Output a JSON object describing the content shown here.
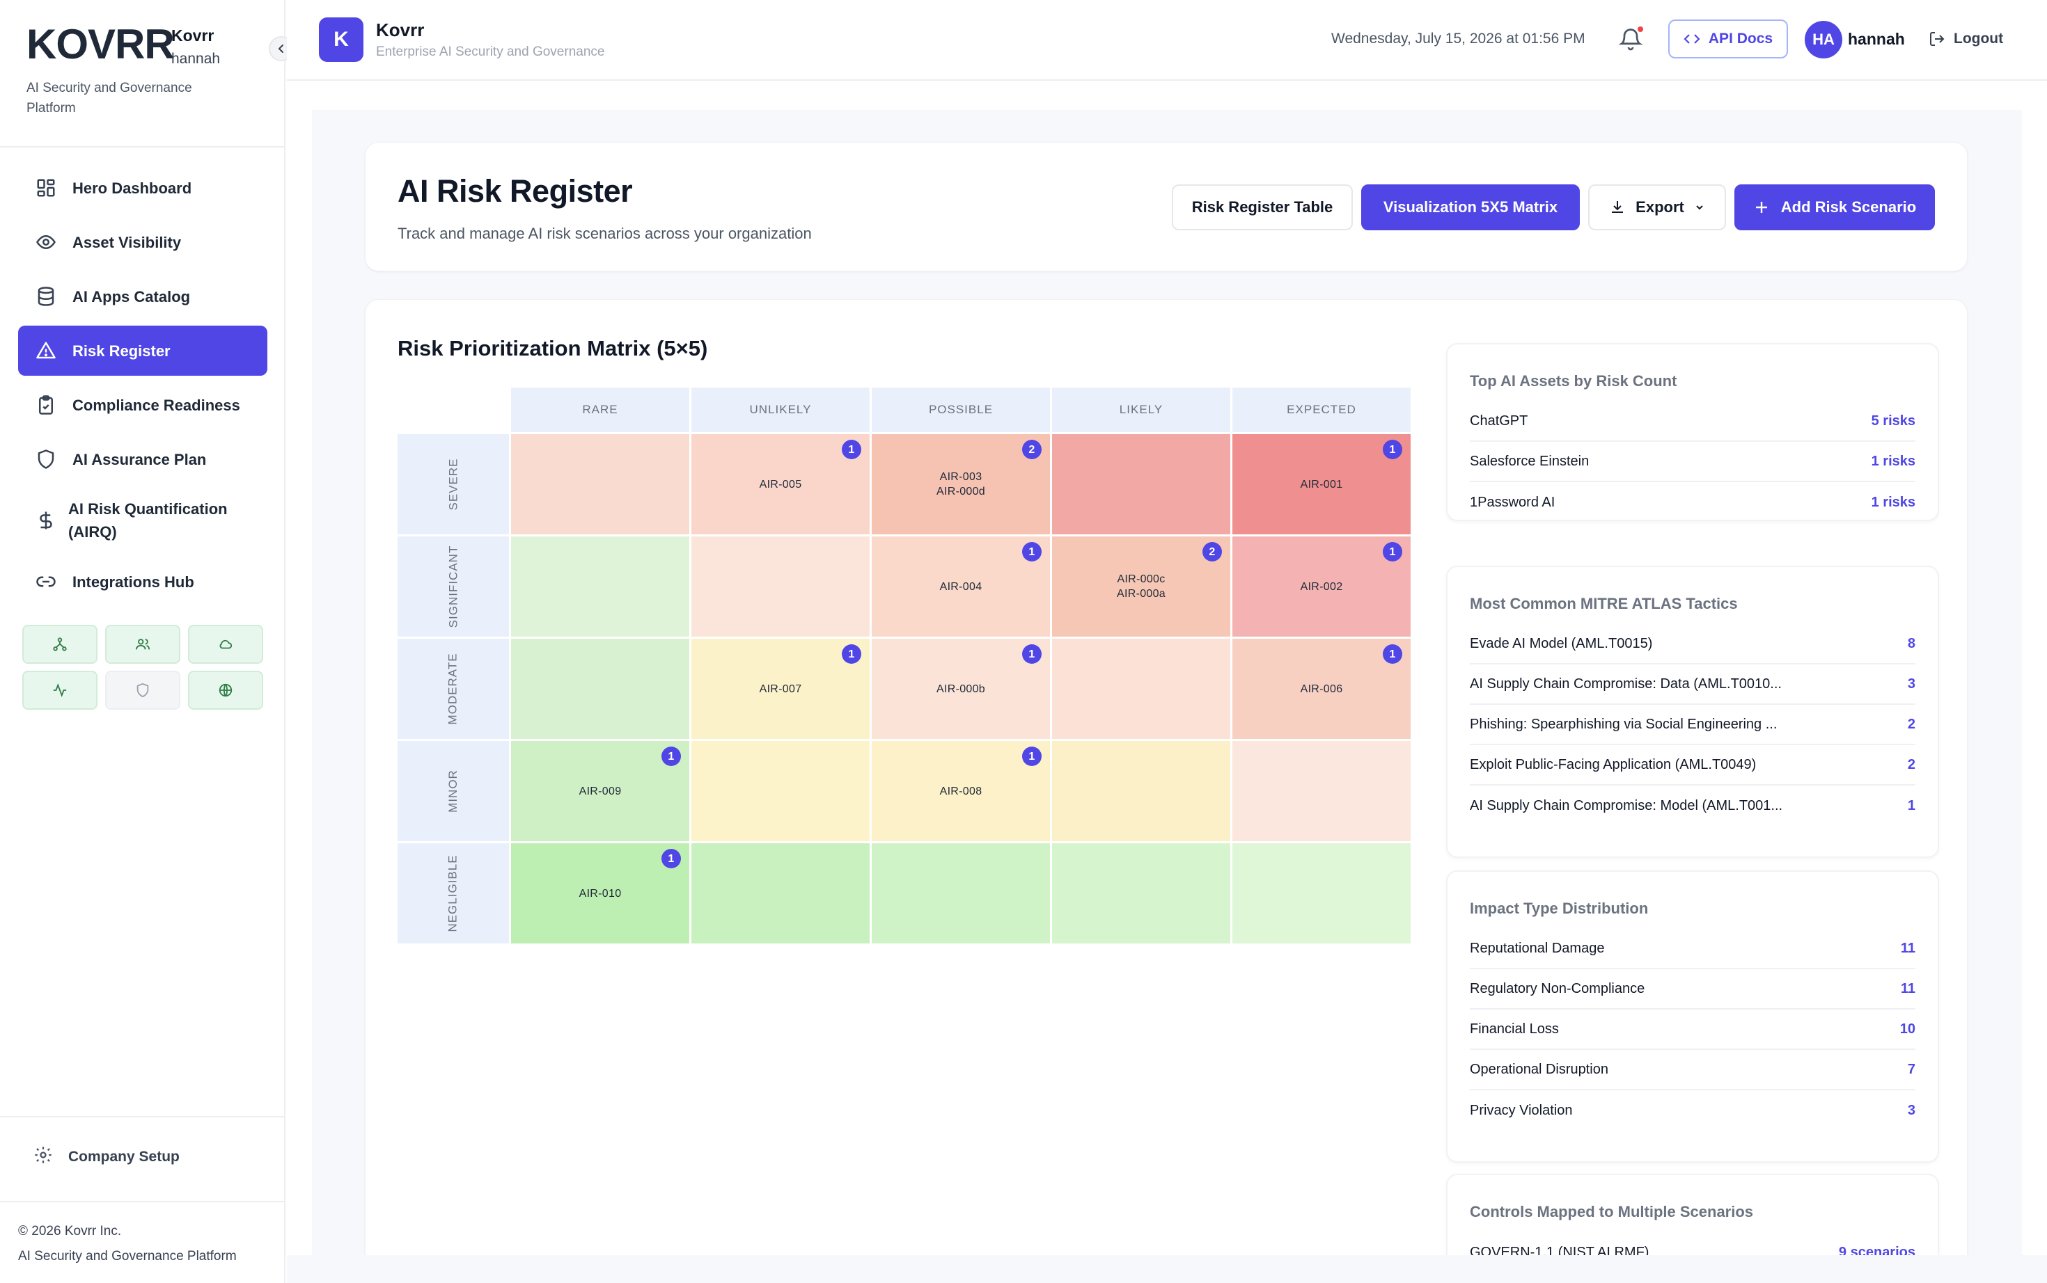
{
  "brand": {
    "name": "Kovrr",
    "user": "hannah",
    "logo_text": "KOVRR",
    "tagline": "AI Security and Governance Platform"
  },
  "sidebar": {
    "items": [
      {
        "label": "Hero Dashboard",
        "icon": "grid-icon"
      },
      {
        "label": "Asset Visibility",
        "icon": "eye-icon"
      },
      {
        "label": "AI Apps Catalog",
        "icon": "database-icon"
      },
      {
        "label": "Risk Register",
        "icon": "alert-triangle-icon",
        "active": true
      },
      {
        "label": "Compliance Readiness",
        "icon": "clipboard-check-icon"
      },
      {
        "label": "AI Assurance Plan",
        "icon": "shield-icon"
      },
      {
        "label": "AI Risk Quantification (AIRQ)",
        "icon": "dollar-icon"
      },
      {
        "label": "Integrations Hub",
        "icon": "link-icon"
      }
    ],
    "quick_icons": [
      "network-icon",
      "users-icon",
      "cloud-icon",
      "activity-icon",
      "shield-icon",
      "globe-icon"
    ],
    "company_setup": "Company Setup",
    "footer_copyright": "© 2026 Kovrr Inc.",
    "footer_tagline": "AI Security and Governance Platform"
  },
  "header": {
    "logo_letter": "K",
    "title": "Kovrr",
    "subtitle": "Enterprise AI Security and Governance",
    "date": "Wednesday, July 15, 2026 at 01:56 PM",
    "api_docs": "API Docs",
    "avatar_initials": "HA",
    "user": "hannah",
    "logout": "Logout"
  },
  "page": {
    "title": "AI Risk Register",
    "subtitle": "Track and manage AI risk scenarios across your organization",
    "btn_table": "Risk Register Table",
    "btn_matrix": "Visualization 5X5 Matrix",
    "btn_export": "Export",
    "btn_add": "Add Risk Scenario"
  },
  "matrix": {
    "title": "Risk Prioritization Matrix (5×5)",
    "columns": [
      "RARE",
      "UNLIKELY",
      "POSSIBLE",
      "LIKELY",
      "EXPECTED"
    ],
    "rows": [
      "SEVERE",
      "SIGNIFICANT",
      "MODERATE",
      "MINOR",
      "NEGLIGIBLE"
    ],
    "cells": [
      [
        {
          "ids": [],
          "color": "#fadbd0"
        },
        {
          "ids": [
            "AIR-005"
          ],
          "count": "1",
          "color": "#fad6ca"
        },
        {
          "ids": [
            "AIR-003",
            "AIR-000d"
          ],
          "count": "2",
          "color": "#f6c3b2"
        },
        {
          "ids": [],
          "color": "#f2a9a6"
        },
        {
          "ids": [
            "AIR-001"
          ],
          "count": "1",
          "color": "#f08f8f"
        }
      ],
      [
        {
          "ids": [],
          "color": "#dff3d8"
        },
        {
          "ids": [],
          "color": "#fbe5da"
        },
        {
          "ids": [
            "AIR-004"
          ],
          "count": "1",
          "color": "#fad9cb"
        },
        {
          "ids": [
            "AIR-000c",
            "AIR-000a"
          ],
          "count": "2",
          "color": "#f6c7b4"
        },
        {
          "ids": [
            "AIR-002"
          ],
          "count": "1",
          "color": "#f4b3b2"
        }
      ],
      [
        {
          "ids": [],
          "color": "#d8f1d0"
        },
        {
          "ids": [
            "AIR-007"
          ],
          "count": "1",
          "color": "#fcf2c9"
        },
        {
          "ids": [
            "AIR-000b"
          ],
          "count": "1",
          "color": "#fbe3d7"
        },
        {
          "ids": [],
          "color": "#fbe1d6"
        },
        {
          "ids": [
            "AIR-006"
          ],
          "count": "1",
          "color": "#f7d0c2"
        }
      ],
      [
        {
          "ids": [
            "AIR-009"
          ],
          "count": "1",
          "color": "#cff0c5"
        },
        {
          "ids": [],
          "color": "#fcf3cb"
        },
        {
          "ids": [
            "AIR-008"
          ],
          "count": "1",
          "color": "#fcf1c8"
        },
        {
          "ids": [],
          "color": "#fcf0c8"
        },
        {
          "ids": [],
          "color": "#fbe7dd"
        }
      ],
      [
        {
          "ids": [
            "AIR-010"
          ],
          "count": "1",
          "color": "#bdeeb2"
        },
        {
          "ids": [],
          "color": "#c9f1bf"
        },
        {
          "ids": [],
          "color": "#cff3c6"
        },
        {
          "ids": [],
          "color": "#d6f4cd"
        },
        {
          "ids": [],
          "color": "#dff7d7"
        }
      ]
    ]
  },
  "panels": {
    "assets": {
      "title": "Top AI Assets by Risk Count",
      "rows": [
        {
          "k": "ChatGPT",
          "v": "5 risks"
        },
        {
          "k": "Salesforce Einstein",
          "v": "1 risks"
        },
        {
          "k": "1Password AI",
          "v": "1 risks"
        }
      ]
    },
    "tactics": {
      "title": "Most Common MITRE ATLAS Tactics",
      "rows": [
        {
          "k": "Evade AI Model (AML.T0015)",
          "v": "8"
        },
        {
          "k": "AI Supply Chain Compromise: Data (AML.T0010...",
          "v": "3"
        },
        {
          "k": "Phishing: Spearphishing via Social Engineering ...",
          "v": "2"
        },
        {
          "k": "Exploit Public-Facing Application (AML.T0049)",
          "v": "2"
        },
        {
          "k": "AI Supply Chain Compromise: Model (AML.T001...",
          "v": "1"
        }
      ]
    },
    "impact": {
      "title": "Impact Type Distribution",
      "rows": [
        {
          "k": "Reputational Damage",
          "v": "11"
        },
        {
          "k": "Regulatory Non-Compliance",
          "v": "11"
        },
        {
          "k": "Financial Loss",
          "v": "10"
        },
        {
          "k": "Operational Disruption",
          "v": "7"
        },
        {
          "k": "Privacy Violation",
          "v": "3"
        }
      ]
    },
    "controls": {
      "title": "Controls Mapped to Multiple Scenarios",
      "rows": [
        {
          "k": "GOVERN-1.1 (NIST AI RMF)",
          "v": "9 scenarios"
        }
      ]
    }
  }
}
